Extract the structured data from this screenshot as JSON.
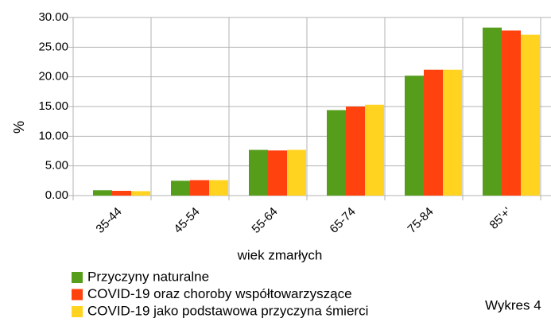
{
  "chart_data": {
    "type": "bar",
    "y_label": "%",
    "x_label": "wiek zmarłych",
    "annotation": "Wykres 4",
    "categories": [
      "35-44",
      "45-54",
      "55-64",
      "65-74",
      "75-84",
      "85'+'"
    ],
    "series": [
      {
        "name": "Przyczyny naturalne",
        "color": "#579d1c",
        "values": [
          0.9,
          2.5,
          7.7,
          14.4,
          20.2,
          28.3
        ]
      },
      {
        "name": "COVID-19 oraz choroby współtowarzyszące",
        "color": "#ff420e",
        "values": [
          0.8,
          2.6,
          7.6,
          15.0,
          21.2,
          27.8
        ]
      },
      {
        "name": "COVID-19 jako podstawowa przyczyna śmierci",
        "color": "#ffd320",
        "values": [
          0.75,
          2.6,
          7.7,
          15.3,
          21.2,
          27.1
        ]
      }
    ],
    "ylim": [
      0,
      30
    ],
    "yticks": [
      {
        "value": 0,
        "label": "0.00"
      },
      {
        "value": 5,
        "label": "5.00"
      },
      {
        "value": 10,
        "label": "10.00"
      },
      {
        "value": 15,
        "label": "15.00"
      },
      {
        "value": 20,
        "label": "20.00"
      },
      {
        "value": 25,
        "label": "25.00"
      },
      {
        "value": 30,
        "label": "30.00"
      }
    ],
    "grid": true,
    "legend": "bottom-left"
  }
}
